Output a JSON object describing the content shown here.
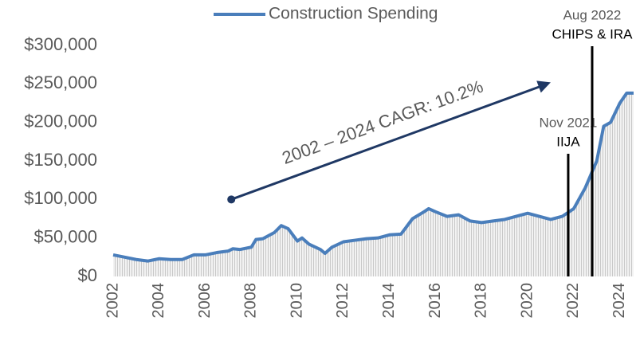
{
  "chart_data": {
    "type": "line",
    "series": [
      {
        "name": "Construction Spending",
        "color": "#4a7ebb",
        "x": [
          2002.0,
          2002.5,
          2003.0,
          2003.5,
          2004.0,
          2004.5,
          2005.0,
          2005.5,
          2006.0,
          2006.5,
          2007.0,
          2007.2,
          2007.5,
          2008.0,
          2008.2,
          2008.5,
          2009.0,
          2009.3,
          2009.6,
          2010.0,
          2010.2,
          2010.5,
          2011.0,
          2011.2,
          2011.5,
          2012.0,
          2012.5,
          2013.0,
          2013.5,
          2014.0,
          2014.5,
          2015.0,
          2015.5,
          2015.7,
          2016.0,
          2016.5,
          2017.0,
          2017.5,
          2018.0,
          2018.5,
          2019.0,
          2019.5,
          2020.0,
          2020.5,
          2021.0,
          2021.5,
          2022.0,
          2022.5,
          2023.0,
          2023.3,
          2023.6,
          2024.0,
          2024.3,
          2024.6
        ],
        "values": [
          28000,
          25000,
          22000,
          20000,
          23000,
          22000,
          22000,
          28000,
          28000,
          31000,
          33000,
          36000,
          35000,
          38000,
          48000,
          49000,
          57000,
          66000,
          62000,
          46000,
          50000,
          42000,
          35000,
          30000,
          38000,
          45000,
          47000,
          49000,
          50000,
          54000,
          55000,
          75000,
          84000,
          88000,
          84000,
          78000,
          80000,
          72000,
          70000,
          72000,
          74000,
          78000,
          82000,
          78000,
          74000,
          78000,
          88000,
          115000,
          150000,
          195000,
          200000,
          225000,
          238000,
          238000
        ]
      }
    ],
    "xlim": [
      2002,
      2024.6
    ],
    "xticks": [
      2002,
      2004,
      2006,
      2008,
      2010,
      2012,
      2014,
      2016,
      2018,
      2020,
      2022,
      2024
    ],
    "ylim": [
      0,
      300000
    ],
    "yticks": [
      {
        "value": 0,
        "label": "$0"
      },
      {
        "value": 50000,
        "label": "$50,000"
      },
      {
        "value": 100000,
        "label": "$100,000"
      },
      {
        "value": 150000,
        "label": "$150,000"
      },
      {
        "value": 200000,
        "label": "$200,000"
      },
      {
        "value": 250000,
        "label": "$250,000"
      },
      {
        "value": 300000,
        "label": "$300,000"
      }
    ],
    "legend": "top",
    "arrow": {
      "text": "2002 – 2024 CAGR: 10.2%",
      "x": [
        2007.13,
        2021.0
      ],
      "y": [
        100000,
        252000
      ],
      "color": "#1f3864"
    },
    "events": [
      {
        "date": "Nov 2021",
        "label": "IIJA",
        "x": 2021.76
      },
      {
        "date": "Aug 2022",
        "label": "CHIPS & IRA",
        "x": 2022.8
      }
    ]
  }
}
